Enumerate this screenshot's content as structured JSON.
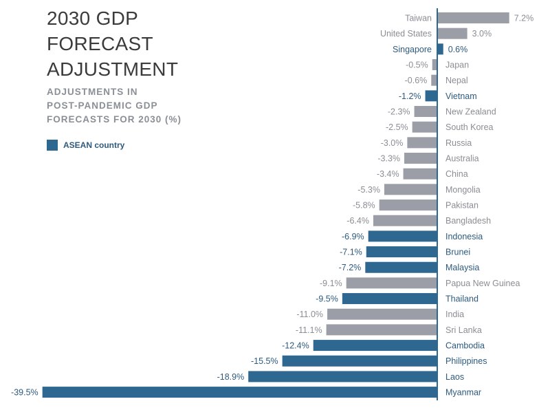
{
  "colors": {
    "asean": "#2e6891",
    "other": "#9b9ea6",
    "asean_text": "#2d5a7e",
    "other_text": "#8a8d94",
    "axis": "#2e6891"
  },
  "header": {
    "title_lines": [
      "2030 GDP",
      "FORECAST",
      "ADJUSTMENT"
    ],
    "subtitle_lines": [
      "ADJUSTMENTS IN",
      "POST-PANDEMIC GDP",
      "FORECASTS FOR 2030 (%)"
    ]
  },
  "legend": {
    "asean_label": "ASEAN country"
  },
  "chart_data": {
    "type": "bar",
    "orientation": "horizontal",
    "title": "2030 GDP Forecast Adjustment",
    "subtitle": "Adjustments in post-pandemic GDP forecasts for 2030 (%)",
    "unit": "%",
    "legend": [
      "ASEAN country"
    ],
    "categories": [
      "Taiwan",
      "United States",
      "Singapore",
      "Japan",
      "Nepal",
      "Vietnam",
      "New Zealand",
      "South Korea",
      "Russia",
      "Australia",
      "China",
      "Mongolia",
      "Pakistan",
      "Bangladesh",
      "Indonesia",
      "Brunei",
      "Malaysia",
      "Papua New Guinea",
      "Thailand",
      "India",
      "Sri Lanka",
      "Cambodia",
      "Philippines",
      "Laos",
      "Myanmar"
    ],
    "values": [
      7.2,
      3.0,
      0.6,
      -0.5,
      -0.6,
      -1.2,
      -2.3,
      -2.5,
      -3.0,
      -3.3,
      -3.4,
      -5.3,
      -5.8,
      -6.4,
      -6.9,
      -7.1,
      -7.2,
      -9.1,
      -9.5,
      -11.0,
      -11.1,
      -12.4,
      -15.5,
      -18.9,
      -39.5
    ],
    "value_labels": [
      "7.2%",
      "3.0%",
      "0.6%",
      "-0.5%",
      "-0.6%",
      "-1.2%",
      "-2.3%",
      "-2.5%",
      "-3.0%",
      "-3.3%",
      "-3.4%",
      "-5.3%",
      "-5.8%",
      "-6.4%",
      "-6.9%",
      "-7.1%",
      "-7.2%",
      "-9.1%",
      "-9.5%",
      "-11.0%",
      "-11.1%",
      "-12.4%",
      "-15.5%",
      "-18.9%",
      "-39.5%"
    ],
    "asean": [
      false,
      false,
      true,
      false,
      false,
      true,
      false,
      false,
      false,
      false,
      false,
      false,
      false,
      false,
      true,
      true,
      true,
      false,
      true,
      false,
      false,
      true,
      true,
      true,
      true
    ],
    "xlim": [
      -39.5,
      7.2
    ]
  }
}
